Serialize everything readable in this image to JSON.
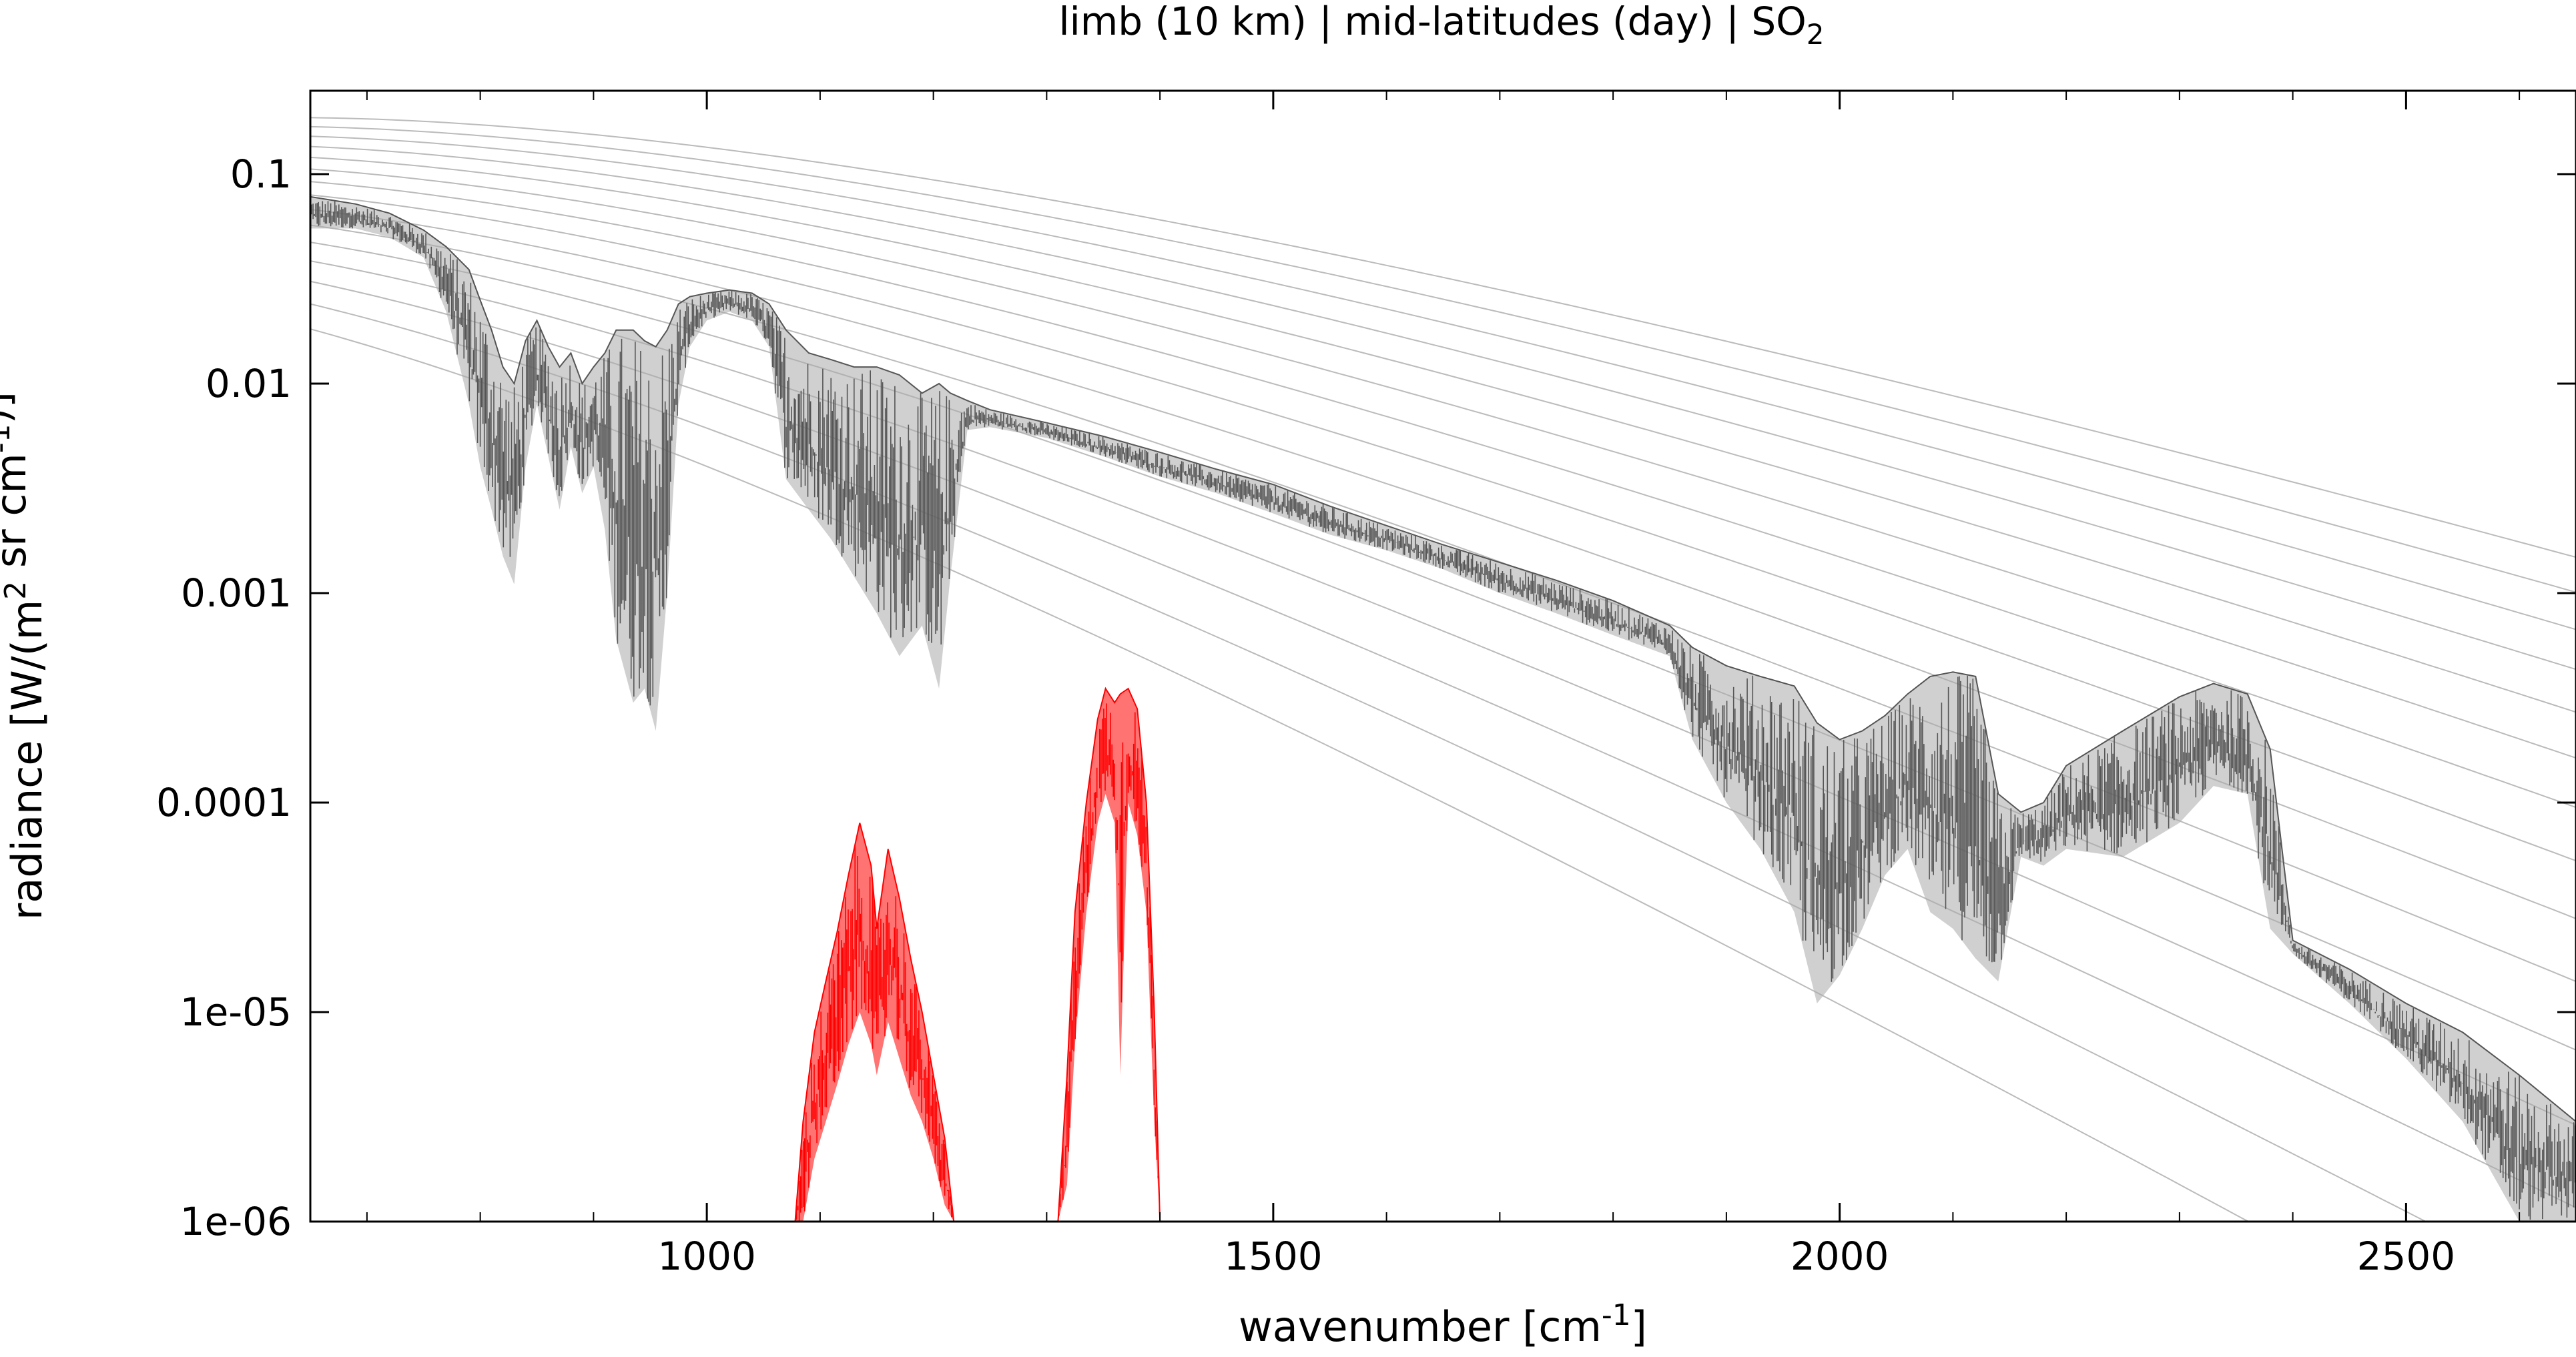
{
  "chart_data": {
    "type": "line",
    "title": {
      "prefix": "limb (10 km) | mid-latitudes (day) | SO",
      "subscript": "2"
    },
    "xlabel": {
      "text": "wavenumber [cm",
      "superscript": "-1",
      "suffix": "]"
    },
    "ylabel": {
      "parts": [
        {
          "text": "radiance [W/(m",
          "sup": false
        },
        {
          "text": "2",
          "sup": true
        },
        {
          "text": " sr cm",
          "sup": false
        },
        {
          "text": "-1",
          "sup": true
        },
        {
          "text": ")]",
          "sup": false
        }
      ]
    },
    "xlim": [
      650,
      2650
    ],
    "ylim": [
      1e-06,
      0.25
    ],
    "yscale": "log",
    "x_ticks": [
      {
        "value": 1000,
        "label": "1000"
      },
      {
        "value": 1500,
        "label": "1500"
      },
      {
        "value": 2000,
        "label": "2000"
      },
      {
        "value": 2500,
        "label": "2500"
      }
    ],
    "y_ticks": [
      {
        "value": 0.1,
        "label": "0.1"
      },
      {
        "value": 0.01,
        "label": "0.01"
      },
      {
        "value": 0.001,
        "label": "0.001"
      },
      {
        "value": 0.0001,
        "label": "0.0001"
      },
      {
        "value": 1e-05,
        "label": "1e-05"
      },
      {
        "value": 1e-06,
        "label": "1e-06"
      }
    ],
    "grid": false,
    "colors": {
      "total": "#555555",
      "total_envelope": "#aaaaaa",
      "so2": "#ff0000",
      "planck": "#bbbbbb"
    },
    "series": [
      {
        "role": "total-radiance",
        "x": [
          650,
          690,
          720,
          750,
          770,
          790,
          800,
          810,
          820,
          830,
          840,
          850,
          860,
          870,
          880,
          890,
          900,
          910,
          920,
          935,
          945,
          955,
          965,
          975,
          985,
          1000,
          1020,
          1040,
          1055,
          1070,
          1090,
          1110,
          1130,
          1150,
          1170,
          1190,
          1205,
          1215,
          1230,
          1250,
          1300,
          1350,
          1400,
          1450,
          1500,
          1550,
          1600,
          1650,
          1700,
          1750,
          1800,
          1850,
          1870,
          1900,
          1930,
          1960,
          1980,
          2000,
          2020,
          2040,
          2060,
          2080,
          2100,
          2120,
          2140,
          2160,
          2180,
          2200,
          2250,
          2300,
          2330,
          2360,
          2380,
          2400,
          2450,
          2500,
          2550,
          2600,
          2650
        ],
        "upper": [
          0.078,
          0.072,
          0.065,
          0.054,
          0.045,
          0.035,
          0.025,
          0.018,
          0.012,
          0.01,
          0.016,
          0.02,
          0.015,
          0.012,
          0.014,
          0.01,
          0.012,
          0.014,
          0.018,
          0.018,
          0.016,
          0.015,
          0.018,
          0.024,
          0.026,
          0.027,
          0.028,
          0.027,
          0.024,
          0.018,
          0.014,
          0.013,
          0.012,
          0.012,
          0.011,
          0.009,
          0.01,
          0.009,
          0.0083,
          0.0075,
          0.0065,
          0.0056,
          0.0047,
          0.0039,
          0.0033,
          0.0026,
          0.0021,
          0.0017,
          0.0014,
          0.00115,
          0.00092,
          0.0007,
          0.00055,
          0.00045,
          0.0004,
          0.00036,
          0.00024,
          0.0002,
          0.00022,
          0.00026,
          0.00033,
          0.0004,
          0.00042,
          0.0004,
          0.00011,
          9e-05,
          0.0001,
          0.00015,
          0.00022,
          0.00032,
          0.00037,
          0.00033,
          0.00018,
          2.2e-05,
          1.6e-05,
          1.1e-05,
          8e-06,
          5e-06,
          3e-06
        ],
        "lower": [
          0.055,
          0.055,
          0.05,
          0.04,
          0.022,
          0.008,
          0.004,
          0.0025,
          0.0015,
          0.0011,
          0.004,
          0.008,
          0.0045,
          0.0025,
          0.005,
          0.003,
          0.004,
          0.002,
          0.0006,
          0.0003,
          0.00035,
          0.00022,
          0.001,
          0.008,
          0.015,
          0.02,
          0.022,
          0.02,
          0.015,
          0.0035,
          0.0025,
          0.0018,
          0.0012,
          0.0008,
          0.0005,
          0.0007,
          0.00035,
          0.0012,
          0.006,
          0.0062,
          0.0055,
          0.0045,
          0.0036,
          0.003,
          0.0024,
          0.0019,
          0.0016,
          0.0013,
          0.001,
          0.0008,
          0.00063,
          0.0005,
          0.0002,
          0.0001,
          6e-05,
          3e-05,
          1.1e-05,
          1.5e-05,
          2.5e-05,
          4.5e-05,
          6e-05,
          3e-05,
          2.5e-05,
          1.8e-05,
          1.4e-05,
          5.5e-05,
          5e-05,
          6e-05,
          5.5e-05,
          8e-05,
          0.00012,
          0.00011,
          2.5e-05,
          1.9e-05,
          1.1e-05,
          6e-06,
          3e-06,
          1e-06,
          1e-06
        ]
      },
      {
        "role": "so2-contribution",
        "x": [
          1078,
          1085,
          1095,
          1105,
          1115,
          1125,
          1135,
          1145,
          1150,
          1160,
          1170,
          1180,
          1190,
          1200,
          1210,
          1218,
          1310,
          1318,
          1325,
          1335,
          1345,
          1352,
          1360,
          1365,
          1372,
          1380,
          1388,
          1395,
          1400
        ],
        "upper": [
          1e-06,
          3e-06,
          8e-06,
          1.4e-05,
          2.4e-05,
          4.5e-05,
          8e-05,
          5e-05,
          2.5e-05,
          6e-05,
          3.5e-05,
          1.8e-05,
          1e-05,
          5e-06,
          2.5e-06,
          1e-06,
          1e-06,
          5e-06,
          3e-05,
          0.0001,
          0.00025,
          0.00035,
          0.0003,
          0.00033,
          0.00035,
          0.00028,
          0.0001,
          1e-05,
          1e-06
        ],
        "lower": [
          1e-06,
          1e-06,
          2e-06,
          3e-06,
          4.5e-06,
          7e-06,
          1e-05,
          7e-06,
          5e-06,
          9e-06,
          6e-06,
          4e-06,
          3e-06,
          2e-06,
          1.2e-06,
          1e-06,
          1e-06,
          1.5e-06,
          7e-06,
          3e-05,
          8e-05,
          0.00011,
          8e-05,
          5e-06,
          0.0001,
          7e-05,
          3e-05,
          3e-06,
          1e-06
        ]
      }
    ],
    "reference_curves": {
      "kind": "planck",
      "temperatures_K": [
        180,
        190,
        200,
        210,
        220,
        230,
        240,
        250,
        260,
        270,
        280,
        290,
        300,
        310,
        320
      ]
    }
  }
}
